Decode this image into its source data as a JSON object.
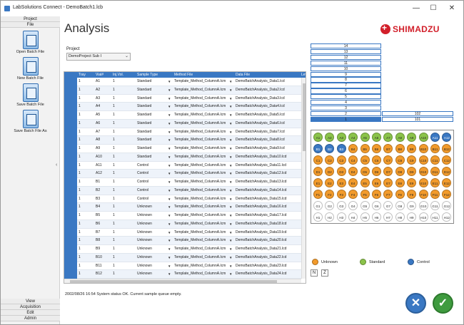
{
  "window": {
    "title": "LabSolutions Connect - DemoBatch1.lcb",
    "minimize": "—",
    "maximize": "☐",
    "close": "✕"
  },
  "rail": {
    "top_menus": [
      "Project",
      "File"
    ],
    "buttons": [
      {
        "label": "Open Batch File",
        "icon": "open-batch-file-icon"
      },
      {
        "label": "New Batch File",
        "icon": "new-batch-file-icon"
      },
      {
        "label": "Save Batch File",
        "icon": "save-batch-file-icon"
      },
      {
        "label": "Save Batch File As",
        "icon": "save-batch-file-as-icon"
      }
    ],
    "bottom_menus": [
      "View",
      "Acquisition",
      "Edit",
      "Admin"
    ],
    "collapse": "‹"
  },
  "header": {
    "title": "Analysis",
    "logo_text": "SHIMADZU"
  },
  "project": {
    "label": "Project",
    "value": "DemoProject Sub I"
  },
  "grid": {
    "columns": [
      "",
      "Tray",
      "Vial#",
      "Inj.Vol.",
      "Sample Type",
      "Method File",
      "Data File",
      "Lev"
    ],
    "rows": [
      [
        "1",
        "A1",
        "1",
        "Standard",
        "Template_Method_ColumnA.lcm",
        "DemoBatchAnalysis_Data1.lcd"
      ],
      [
        "1",
        "A2",
        "1",
        "Standard",
        "Template_Method_ColumnA.lcm",
        "DemoBatchAnalysis_Data2.lcd"
      ],
      [
        "1",
        "A3",
        "1",
        "Standard",
        "Template_Method_ColumnA.lcm",
        "DemoBatchAnalysis_Data3.lcd"
      ],
      [
        "1",
        "A4",
        "1",
        "Standard",
        "Template_Method_ColumnA.lcm",
        "DemoBatchAnalysis_Data4.lcd"
      ],
      [
        "1",
        "A5",
        "1",
        "Standard",
        "Template_Method_ColumnA.lcm",
        "DemoBatchAnalysis_Data5.lcd"
      ],
      [
        "1",
        "A6",
        "1",
        "Standard",
        "Template_Method_ColumnA.lcm",
        "DemoBatchAnalysis_Data6.lcd"
      ],
      [
        "1",
        "A7",
        "1",
        "Standard",
        "Template_Method_ColumnA.lcm",
        "DemoBatchAnalysis_Data7.lcd"
      ],
      [
        "1",
        "A8",
        "1",
        "Standard",
        "Template_Method_ColumnA.lcm",
        "DemoBatchAnalysis_Data8.lcd"
      ],
      [
        "1",
        "A9",
        "1",
        "Standard",
        "Template_Method_ColumnA.lcm",
        "DemoBatchAnalysis_Data9.lcd"
      ],
      [
        "1",
        "A10",
        "1",
        "Standard",
        "Template_Method_ColumnA.lcm",
        "DemoBatchAnalysis_Data10.lcd"
      ],
      [
        "1",
        "A11",
        "1",
        "Control",
        "Template_Method_ColumnA.lcm",
        "DemoBatchAnalysis_Data11.lcd"
      ],
      [
        "1",
        "A12",
        "1",
        "Control",
        "Template_Method_ColumnA.lcm",
        "DemoBatchAnalysis_Data12.lcd"
      ],
      [
        "1",
        "B1",
        "1",
        "Control",
        "Template_Method_ColumnA.lcm",
        "DemoBatchAnalysis_Data13.lcd"
      ],
      [
        "1",
        "B2",
        "1",
        "Control",
        "Template_Method_ColumnA.lcm",
        "DemoBatchAnalysis_Data14.lcd"
      ],
      [
        "1",
        "B3",
        "1",
        "Control",
        "Template_Method_ColumnA.lcm",
        "DemoBatchAnalysis_Data15.lcd"
      ],
      [
        "1",
        "B4",
        "1",
        "Unknown",
        "Template_Method_ColumnA.lcm",
        "DemoBatchAnalysis_Data16.lcd"
      ],
      [
        "1",
        "B5",
        "1",
        "Unknown",
        "Template_Method_ColumnA.lcm",
        "DemoBatchAnalysis_Data17.lcd"
      ],
      [
        "1",
        "B6",
        "1",
        "Unknown",
        "Template_Method_ColumnA.lcm",
        "DemoBatchAnalysis_Data18.lcd"
      ],
      [
        "1",
        "B7",
        "1",
        "Unknown",
        "Template_Method_ColumnA.lcm",
        "DemoBatchAnalysis_Data19.lcd"
      ],
      [
        "1",
        "B8",
        "1",
        "Unknown",
        "Template_Method_ColumnA.lcm",
        "DemoBatchAnalysis_Data20.lcd"
      ],
      [
        "1",
        "B9",
        "1",
        "Unknown",
        "Template_Method_ColumnA.lcm",
        "DemoBatchAnalysis_Data21.lcd"
      ],
      [
        "1",
        "B10",
        "1",
        "Unknown",
        "Template_Method_ColumnA.lcm",
        "DemoBatchAnalysis_Data22.lcd"
      ],
      [
        "1",
        "B11",
        "1",
        "Unknown",
        "Template_Method_ColumnA.lcm",
        "DemoBatchAnalysis_Data23.lcd"
      ],
      [
        "1",
        "B12",
        "1",
        "Unknown",
        "Template_Method_ColumnA.lcm",
        "DemoBatchAnalysis_Data24.lcd"
      ]
    ]
  },
  "queue": {
    "left": [
      "14",
      "13",
      "12",
      "11",
      "10",
      "9",
      "8",
      "7",
      "6",
      "5",
      "4",
      "3",
      "2",
      "1"
    ],
    "right_top": "102",
    "right_bottom": "101"
  },
  "plate": {
    "rows": [
      [
        "A1",
        "A2",
        "A3",
        "A4",
        "A5",
        "A6",
        "A7",
        "A8",
        "A9",
        "A10",
        "A11",
        "A12"
      ],
      [
        "B1",
        "B2",
        "B3",
        "B4",
        "B5",
        "B6",
        "B7",
        "B8",
        "B9",
        "B10",
        "B11",
        "B12"
      ],
      [
        "C1",
        "C2",
        "C3",
        "C4",
        "C5",
        "C6",
        "C7",
        "C8",
        "C9",
        "C10",
        "C11",
        "C12"
      ],
      [
        "D1",
        "D2",
        "D3",
        "D4",
        "D5",
        "D6",
        "D7",
        "D8",
        "D9",
        "D10",
        "D11",
        "D12"
      ],
      [
        "E1",
        "E2",
        "E3",
        "E4",
        "E5",
        "E6",
        "E7",
        "E8",
        "E9",
        "E10",
        "E11",
        "E12"
      ],
      [
        "F1",
        "F2",
        "F3",
        "F4",
        "F5",
        "F6",
        "F7",
        "F8",
        "F9",
        "F10",
        "F11",
        "F12"
      ],
      [
        "G1",
        "G2",
        "G3",
        "G4",
        "G5",
        "G6",
        "G7",
        "G8",
        "G9",
        "G10",
        "G11",
        "G12"
      ],
      [
        "H1",
        "H2",
        "H3",
        "H4",
        "H5",
        "H6",
        "H7",
        "H8",
        "H9",
        "H10",
        "H11",
        "H12"
      ]
    ],
    "types": [
      [
        "S",
        "S",
        "S",
        "S",
        "S",
        "S",
        "S",
        "S",
        "S",
        "S",
        "C",
        "C"
      ],
      [
        "C",
        "C",
        "C",
        "U",
        "U",
        "U",
        "U",
        "U",
        "U",
        "U",
        "U",
        "U"
      ],
      [
        "U",
        "U",
        "U",
        "U",
        "U",
        "U",
        "U",
        "U",
        "U",
        "U",
        "U",
        "U"
      ],
      [
        "U",
        "U",
        "U",
        "U",
        "U",
        "U",
        "U",
        "U",
        "U",
        "U",
        "U",
        "U"
      ],
      [
        "U",
        "U",
        "U",
        "U",
        "U",
        "U",
        "U",
        "U",
        "U",
        "U",
        "U",
        "U"
      ],
      [
        "U",
        "U",
        "U",
        "U",
        "U",
        "U",
        "U",
        "U",
        "U",
        "U",
        "U",
        "U"
      ],
      [
        "E",
        "E",
        "E",
        "E",
        "E",
        "E",
        "E",
        "E",
        "E",
        "E",
        "E",
        "E"
      ],
      [
        "E",
        "E",
        "E",
        "E",
        "E",
        "E",
        "E",
        "E",
        "E",
        "E",
        "E",
        "E"
      ]
    ]
  },
  "legend": [
    {
      "label": "Unknown",
      "color": "#f29b2c"
    },
    {
      "label": "Standard",
      "color": "#8bc34a"
    },
    {
      "label": "Control",
      "color": "#3a78c3"
    }
  ],
  "toggles": [
    "N",
    "Z"
  ],
  "status": "2002/08/26 16:54 System status OK.  Current sample queue empty.",
  "actions": {
    "cancel": "✕",
    "ok": "✓"
  },
  "colors": {
    "accent": "#3a78c3",
    "unknown": "#f29b2c",
    "standard": "#8bc34a",
    "control": "#3a78c3",
    "empty": "#ffffff",
    "brand": "#d21f2a"
  }
}
